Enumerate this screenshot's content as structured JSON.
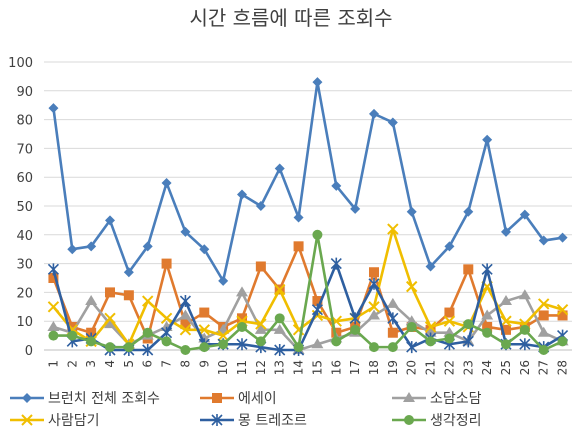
{
  "chart_data": {
    "type": "line",
    "title": "시간 흐름에 따른 조회수",
    "xlabel": "",
    "ylabel": "",
    "ylim": [
      0,
      100
    ],
    "yticks": [
      0,
      10,
      20,
      30,
      40,
      50,
      60,
      70,
      80,
      90,
      100
    ],
    "x": [
      1,
      2,
      3,
      4,
      5,
      6,
      7,
      8,
      9,
      10,
      11,
      12,
      13,
      14,
      15,
      16,
      17,
      18,
      19,
      20,
      21,
      22,
      23,
      24,
      25,
      26,
      27,
      28
    ],
    "grid": true,
    "legend_position": "bottom",
    "series": [
      {
        "name": "브런치 전체 조회수",
        "color": "#4a7ebb",
        "marker": "diamond",
        "values": [
          84,
          35,
          36,
          45,
          27,
          36,
          58,
          41,
          35,
          24,
          54,
          50,
          63,
          46,
          93,
          57,
          49,
          82,
          79,
          48,
          29,
          36,
          48,
          73,
          41,
          47,
          38,
          39
        ]
      },
      {
        "name": "에세이",
        "color": "#e07a2e",
        "marker": "square",
        "values": [
          25,
          8,
          6,
          20,
          19,
          4,
          30,
          9,
          13,
          8,
          11,
          29,
          21,
          36,
          17,
          6,
          8,
          27,
          6,
          8,
          7,
          13,
          28,
          8,
          7,
          8,
          12,
          12
        ]
      },
      {
        "name": "소담소담",
        "color": "#a0a0a0",
        "marker": "triangle",
        "values": [
          8,
          6,
          17,
          9,
          2,
          5,
          8,
          12,
          4,
          7,
          20,
          7,
          7,
          0,
          2,
          4,
          6,
          12,
          16,
          10,
          6,
          6,
          3,
          12,
          17,
          19,
          6,
          3
        ]
      },
      {
        "name": "사람담기",
        "color": "#f0be00",
        "marker": "x",
        "values": [
          15,
          7,
          3,
          11,
          2,
          17,
          11,
          7,
          7,
          5,
          10,
          9,
          21,
          7,
          12,
          10,
          11,
          15,
          42,
          22,
          8,
          10,
          8,
          22,
          10,
          9,
          16,
          14
        ]
      },
      {
        "name": "몽 트레조르",
        "color": "#2e5fa0",
        "marker": "star",
        "values": [
          28,
          3,
          4,
          0,
          0,
          0,
          6,
          17,
          2,
          2,
          2,
          1,
          0,
          0,
          14,
          30,
          11,
          23,
          11,
          1,
          4,
          2,
          3,
          28,
          2,
          2,
          1,
          5
        ]
      },
      {
        "name": "생각정리",
        "color": "#6aa84f",
        "marker": "circle",
        "values": [
          5,
          5,
          3,
          1,
          1,
          6,
          3,
          0,
          1,
          2,
          8,
          3,
          11,
          1,
          40,
          3,
          7,
          1,
          1,
          8,
          3,
          4,
          9,
          6,
          2,
          7,
          0,
          3
        ]
      }
    ]
  }
}
